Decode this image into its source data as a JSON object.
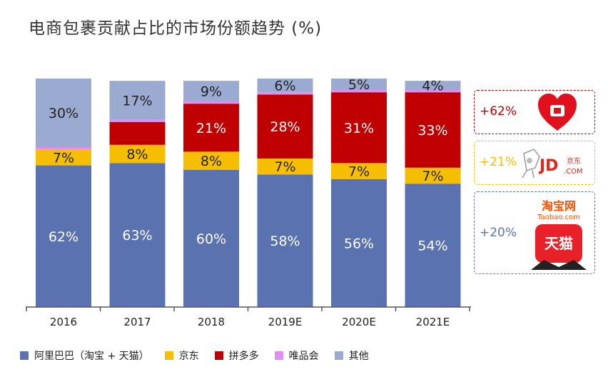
{
  "title": "电商包裹贡献占比的市场份额趋势 (%)",
  "chart_data": {
    "type": "bar",
    "stacked": true,
    "categories": [
      "2016",
      "2017",
      "2018",
      "2019E",
      "2020E",
      "2021E"
    ],
    "ylim": [
      0,
      100
    ],
    "series": [
      {
        "name": "阿里巴巴（淘宝 + 天猫）",
        "color": "#5b72b0",
        "values": [
          62,
          63,
          60,
          58,
          56,
          54
        ]
      },
      {
        "name": "京东",
        "color": "#f6be00",
        "values": [
          7,
          8,
          8,
          7,
          7,
          7
        ]
      },
      {
        "name": "拼多多",
        "color": "#c00000",
        "values": [
          0,
          10,
          21,
          28,
          31,
          33
        ]
      },
      {
        "name": "唯品会",
        "color": "#e18ef0",
        "values": [
          1,
          1,
          1,
          1,
          1,
          1
        ]
      },
      {
        "name": "其他",
        "color": "#9baad0",
        "values": [
          30,
          17,
          9,
          6,
          5,
          4
        ]
      }
    ],
    "data_labels": [
      [
        "62%",
        "63%",
        "60%",
        "58%",
        "56%",
        "54%"
      ],
      [
        "7%",
        "8%",
        "8%",
        "7%",
        "7%",
        "7%"
      ],
      [
        "",
        "",
        "21%",
        "28%",
        "31%",
        "33%"
      ],
      [
        "",
        "",
        "",
        "",
        "",
        ""
      ],
      [
        "30%",
        "17%",
        "9%",
        "6%",
        "5%",
        "4%"
      ]
    ],
    "grid": false,
    "legend_position": "bottom"
  },
  "callouts": [
    {
      "value": "+62%",
      "border_color": "#c00000",
      "text_color": "#c00000",
      "logo": "pinduoduo-logo"
    },
    {
      "value": "+21%",
      "border_color": "#f6be00",
      "text_color": "#f6be00",
      "logo": "jd-logo",
      "logo_text": "JD",
      "logo_sub": ".COM",
      "logo_small": "京东"
    },
    {
      "value": "+20%",
      "border_color": "#5b72b0",
      "text_color": "#5b72b0",
      "logo": "taobao-tmall-logo",
      "logo_text": "淘宝网",
      "logo_sub": "Taobao.com",
      "logo_tmall": "天猫"
    }
  ]
}
